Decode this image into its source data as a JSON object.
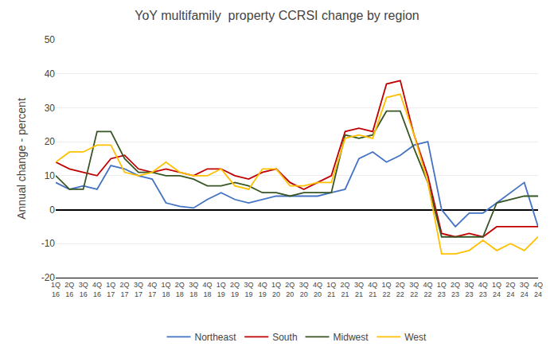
{
  "chart_data": {
    "type": "line",
    "title": "YoY multifamily  property CCRSI change by region",
    "ylabel": "Annual change - percent",
    "categories": [
      "1Q\n16",
      "2Q\n16",
      "3Q\n16",
      "4Q\n16",
      "1Q\n17",
      "2Q\n17",
      "3Q\n17",
      "4Q\n17",
      "1Q\n18",
      "2Q\n18",
      "3Q\n18",
      "4Q\n18",
      "1Q\n19",
      "2Q\n19",
      "3Q\n19",
      "4Q\n19",
      "1Q\n20",
      "2Q\n20",
      "3Q\n20",
      "4Q\n20",
      "1Q\n21",
      "2Q\n21",
      "3Q\n21",
      "4Q\n21",
      "1Q\n22",
      "2Q\n22",
      "3Q\n22",
      "4Q\n22",
      "1Q\n23",
      "2Q\n23",
      "3Q\n23",
      "4Q\n23",
      "1Q\n24",
      "2Q\n24",
      "3Q\n24",
      "4Q\n24"
    ],
    "series": [
      {
        "name": "Northeast",
        "color": "#4472c4",
        "values": [
          8,
          6,
          7,
          6,
          13,
          12,
          10,
          9,
          2,
          1,
          0.5,
          3,
          5,
          3,
          2,
          3,
          4,
          4,
          4,
          4,
          5,
          6,
          15,
          17,
          14,
          16,
          19,
          20,
          0,
          -5,
          -1,
          -1,
          2,
          5,
          8,
          -5
        ]
      },
      {
        "name": "South",
        "color": "#c00000",
        "values": [
          14,
          12,
          11,
          10,
          15,
          16,
          12,
          11,
          12,
          11,
          10,
          12,
          12,
          10,
          9,
          11,
          12,
          8,
          6,
          8,
          10,
          23,
          24,
          23,
          37,
          38,
          22,
          10,
          -7,
          -8,
          -7,
          -8,
          -5,
          -5,
          -5,
          -5
        ]
      },
      {
        "name": "Midwest",
        "color": "#375623",
        "values": [
          10,
          6,
          6,
          23,
          23,
          15,
          11,
          11,
          10,
          10,
          9,
          7,
          7,
          8,
          7,
          5,
          5,
          4,
          5,
          5,
          5,
          22,
          21,
          22,
          29,
          29,
          18,
          8,
          -8,
          -8,
          -8,
          -8,
          2,
          3,
          4,
          4
        ]
      },
      {
        "name": "West",
        "color": "#ffc000",
        "values": [
          14,
          17,
          17,
          19,
          19,
          11,
          10,
          11,
          14,
          11,
          10,
          10,
          12,
          7,
          6,
          12,
          12,
          7,
          7,
          8,
          8,
          21,
          22,
          21,
          33,
          34,
          22,
          8,
          -13,
          -13,
          -12,
          -9,
          -12,
          -10,
          -12,
          -8
        ]
      }
    ],
    "ylim": [
      -20,
      50
    ],
    "yticks": [
      -20,
      -10,
      0,
      10,
      20,
      30,
      40,
      50
    ],
    "grid": true,
    "legend": "bottom"
  }
}
